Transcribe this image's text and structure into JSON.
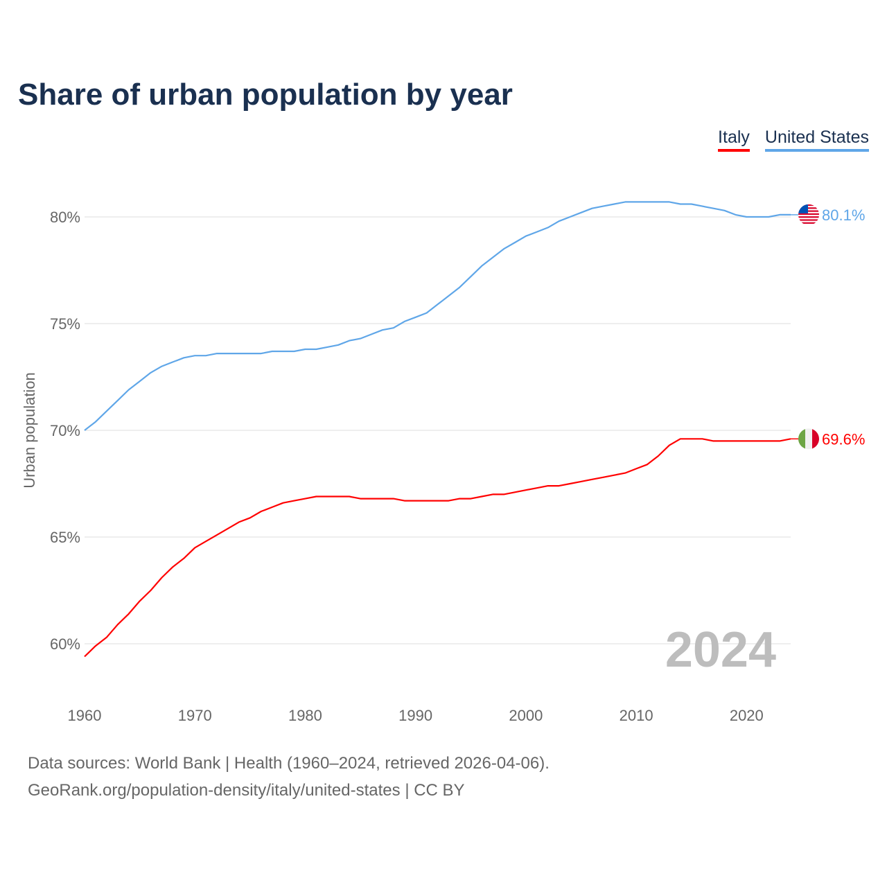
{
  "chart_data": {
    "type": "line",
    "title": "Share of urban population by year",
    "xlabel": "",
    "ylabel": "Urban population",
    "xlim": [
      1960,
      2024
    ],
    "ylim": [
      58.5,
      82
    ],
    "x_ticks": [
      "1960",
      "1970",
      "1980",
      "1990",
      "2000",
      "2010",
      "2020"
    ],
    "y_ticks": [
      {
        "v": 60,
        "label": "60%"
      },
      {
        "v": 65,
        "label": "65%"
      },
      {
        "v": 70,
        "label": "70%"
      },
      {
        "v": 75,
        "label": "75%"
      },
      {
        "v": 80,
        "label": "80%"
      }
    ],
    "grid": true,
    "legend_position": "top-right",
    "year_label": "2024",
    "x": [
      1960,
      1961,
      1962,
      1963,
      1964,
      1965,
      1966,
      1967,
      1968,
      1969,
      1970,
      1971,
      1972,
      1973,
      1974,
      1975,
      1976,
      1977,
      1978,
      1979,
      1980,
      1981,
      1982,
      1983,
      1984,
      1985,
      1986,
      1987,
      1988,
      1989,
      1990,
      1991,
      1992,
      1993,
      1994,
      1995,
      1996,
      1997,
      1998,
      1999,
      2000,
      2001,
      2002,
      2003,
      2004,
      2005,
      2006,
      2007,
      2008,
      2009,
      2010,
      2011,
      2012,
      2013,
      2014,
      2015,
      2016,
      2017,
      2018,
      2019,
      2020,
      2021,
      2022,
      2023,
      2024
    ],
    "series": [
      {
        "name": "Italy",
        "color": "#ff0000",
        "end_label": "69.6%",
        "flag": "italy-flag",
        "values": [
          59.4,
          59.9,
          60.3,
          60.9,
          61.4,
          62.0,
          62.5,
          63.1,
          63.6,
          64.0,
          64.5,
          64.8,
          65.1,
          65.4,
          65.7,
          65.9,
          66.2,
          66.4,
          66.6,
          66.7,
          66.8,
          66.9,
          66.9,
          66.9,
          66.9,
          66.8,
          66.8,
          66.8,
          66.8,
          66.7,
          66.7,
          66.7,
          66.7,
          66.7,
          66.8,
          66.8,
          66.9,
          67.0,
          67.0,
          67.1,
          67.2,
          67.3,
          67.4,
          67.4,
          67.5,
          67.6,
          67.7,
          67.8,
          67.9,
          68.0,
          68.2,
          68.4,
          68.8,
          69.3,
          69.6,
          69.6,
          69.6,
          69.5,
          69.5,
          69.5,
          69.5,
          69.5,
          69.5,
          69.5,
          69.6
        ]
      },
      {
        "name": "United States",
        "color": "#5fa6e8",
        "end_label": "80.1%",
        "flag": "usa-flag",
        "values": [
          70.0,
          70.4,
          70.9,
          71.4,
          71.9,
          72.3,
          72.7,
          73.0,
          73.2,
          73.4,
          73.5,
          73.5,
          73.6,
          73.6,
          73.6,
          73.6,
          73.6,
          73.7,
          73.7,
          73.7,
          73.8,
          73.8,
          73.9,
          74.0,
          74.2,
          74.3,
          74.5,
          74.7,
          74.8,
          75.1,
          75.3,
          75.5,
          75.9,
          76.3,
          76.7,
          77.2,
          77.7,
          78.1,
          78.5,
          78.8,
          79.1,
          79.3,
          79.5,
          79.8,
          80.0,
          80.2,
          80.4,
          80.5,
          80.6,
          80.7,
          80.7,
          80.7,
          80.7,
          80.7,
          80.6,
          80.6,
          80.5,
          80.4,
          80.3,
          80.1,
          80.0,
          80.0,
          80.0,
          80.1,
          80.1
        ]
      }
    ]
  },
  "footer": {
    "line1": "Data sources: World Bank | Health (1960–2024, retrieved 2026-04-06).",
    "line2": "GeoRank.org/population-density/italy/united-states | CC BY"
  }
}
